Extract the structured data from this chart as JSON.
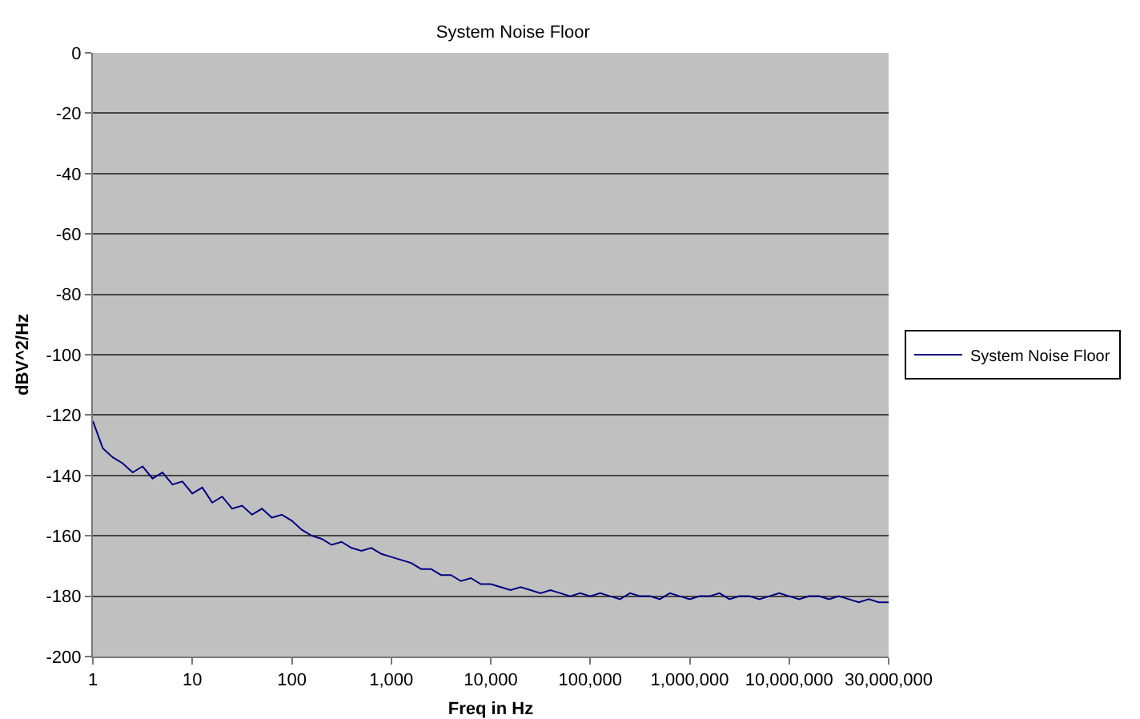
{
  "chart_data": {
    "type": "line",
    "title": "System Noise Floor",
    "xlabel": "Freq in Hz",
    "ylabel": "dBV^2/Hz",
    "categories": [
      "1",
      null,
      null,
      null,
      null,
      null,
      null,
      null,
      null,
      null,
      "10",
      null,
      null,
      null,
      null,
      null,
      null,
      null,
      null,
      null,
      "100",
      null,
      null,
      null,
      null,
      null,
      null,
      null,
      null,
      null,
      "1,000",
      null,
      null,
      null,
      null,
      null,
      null,
      null,
      null,
      null,
      "10,000",
      null,
      null,
      null,
      null,
      null,
      null,
      null,
      null,
      null,
      "100,000",
      null,
      null,
      null,
      null,
      null,
      null,
      null,
      null,
      null,
      "1,000,000",
      null,
      null,
      null,
      null,
      null,
      null,
      null,
      null,
      null,
      "10,000,000",
      null,
      null,
      null,
      null,
      null,
      null,
      null,
      null,
      null,
      "30,000,000"
    ],
    "series": [
      {
        "name": "System Noise Floor",
        "color": "#000080",
        "values": [
          -122,
          -131,
          -134,
          -136,
          -139,
          -137,
          -141,
          -139,
          -143,
          -142,
          -146,
          -144,
          -149,
          -147,
          -151,
          -150,
          -153,
          -151,
          -154,
          -153,
          -155,
          -158,
          -160,
          -161,
          -163,
          -162,
          -164,
          -165,
          -164,
          -166,
          -167,
          -168,
          -169,
          -171,
          -171,
          -173,
          -173,
          -175,
          -174,
          -176,
          -176,
          -177,
          -178,
          -177,
          -178,
          -179,
          -178,
          -179,
          -180,
          -179,
          -180,
          -179,
          -180,
          -181,
          -179,
          -180,
          -180,
          -181,
          -179,
          -180,
          -181,
          -180,
          -180,
          -179,
          -181,
          -180,
          -180,
          -181,
          -180,
          -179,
          -180,
          -181,
          -180,
          -180,
          -181,
          -180,
          -181,
          -182,
          -181,
          -182,
          -182
        ]
      }
    ],
    "ylim": [
      -200,
      0
    ],
    "yticks": [
      -200,
      -180,
      -160,
      -140,
      -120,
      -100,
      -80,
      -60,
      -40,
      -20,
      0
    ],
    "grid": "y",
    "legend": "right"
  }
}
